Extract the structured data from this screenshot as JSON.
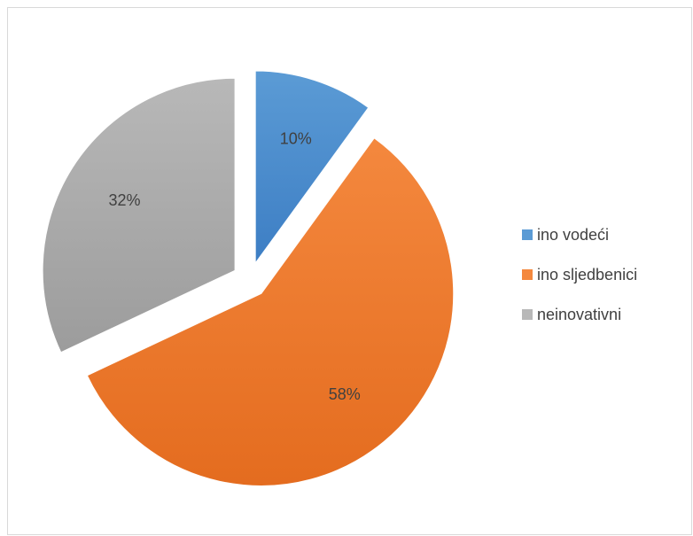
{
  "chart_data": {
    "type": "pie",
    "title": "",
    "legend_position": "right",
    "slices": [
      {
        "name": "ino vodeći",
        "value": 10,
        "label": "10%",
        "color": "#5b9bd5",
        "color_dark": "#3d7ec4",
        "exploded": true
      },
      {
        "name": "ino sljedbenici",
        "value": 58,
        "label": "58%",
        "color": "#f4883e",
        "color_dark": "#e46c1f",
        "exploded": true
      },
      {
        "name": "neinovativni",
        "value": 32,
        "label": "32%",
        "color": "#b8b8b8",
        "color_dark": "#9c9c9c",
        "exploded": true
      }
    ]
  }
}
